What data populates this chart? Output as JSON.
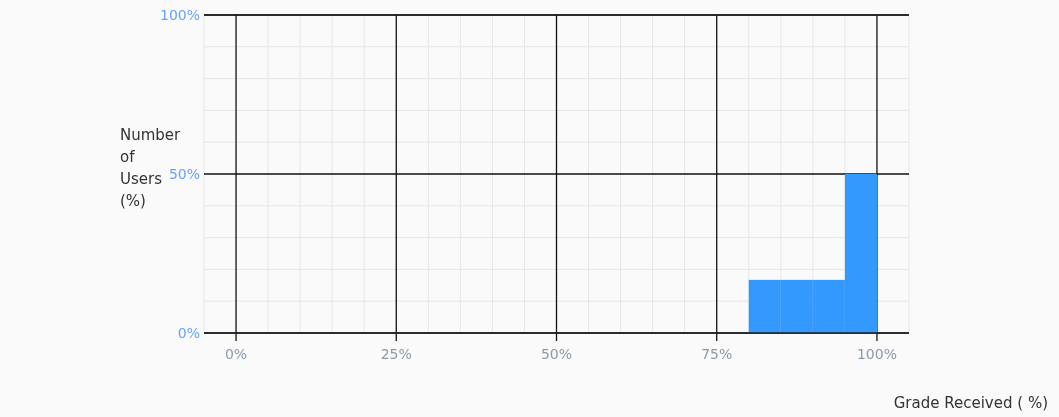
{
  "chart_data": {
    "type": "histogram",
    "xlabel": "Grade Received ( %)",
    "ylabel": "Number of Users (%)",
    "bins": [
      80,
      85,
      90,
      95,
      100
    ],
    "values": [
      16.7,
      16.7,
      16.7,
      50
    ],
    "color": "#3399ff",
    "xlim": [
      -5,
      105
    ],
    "ylim": [
      0,
      100
    ],
    "xticks": [
      {
        "value": -5,
        "label": null
      },
      {
        "value": 0,
        "label": "0%"
      },
      {
        "value": 5,
        "label": null
      },
      {
        "value": 10,
        "label": null
      },
      {
        "value": 15,
        "label": null
      },
      {
        "value": 20,
        "label": null
      },
      {
        "value": 25,
        "label": "25%"
      },
      {
        "value": 30,
        "label": null
      },
      {
        "value": 35,
        "label": null
      },
      {
        "value": 40,
        "label": null
      },
      {
        "value": 45,
        "label": null
      },
      {
        "value": 50,
        "label": "50%"
      },
      {
        "value": 55,
        "label": null
      },
      {
        "value": 60,
        "label": null
      },
      {
        "value": 65,
        "label": null
      },
      {
        "value": 70,
        "label": null
      },
      {
        "value": 75,
        "label": "75%"
      },
      {
        "value": 80,
        "label": null
      },
      {
        "value": 85,
        "label": null
      },
      {
        "value": 90,
        "label": null
      },
      {
        "value": 95,
        "label": null
      },
      {
        "value": 100,
        "label": "100%"
      },
      {
        "value": 105,
        "label": null
      }
    ],
    "yticks": [
      {
        "value": 0,
        "label": "0%"
      },
      {
        "value": 10,
        "label": null
      },
      {
        "value": 20,
        "label": null
      },
      {
        "value": 30,
        "label": null
      },
      {
        "value": 40,
        "label": null
      },
      {
        "value": 50,
        "label": "50%"
      },
      {
        "value": 60,
        "label": null
      },
      {
        "value": 70,
        "label": null
      },
      {
        "value": 80,
        "label": null
      },
      {
        "value": 90,
        "label": null
      },
      {
        "value": 100,
        "label": "100%"
      }
    ],
    "grid": true
  }
}
